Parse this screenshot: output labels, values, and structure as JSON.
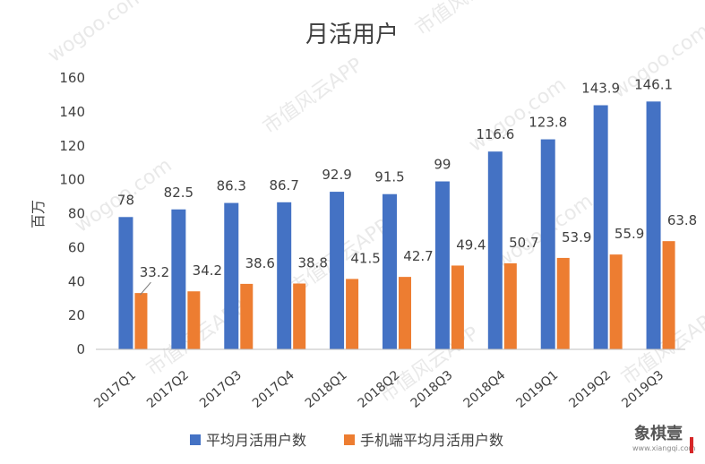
{
  "chart_data": {
    "type": "bar",
    "title": "月活用户",
    "ylabel": "百万",
    "xlabel": "",
    "ylim": [
      0,
      160
    ],
    "yticks": [
      0,
      20,
      40,
      60,
      80,
      100,
      120,
      140,
      160
    ],
    "categories": [
      "2017Q1",
      "2017Q2",
      "2017Q3",
      "2017Q4",
      "2018Q1",
      "2018Q2",
      "2018Q3",
      "2018Q4",
      "2019Q1",
      "2019Q2",
      "2019Q3"
    ],
    "series": [
      {
        "name": "平均月活用户数",
        "color": "#4472c4",
        "values": [
          78,
          82.5,
          86.3,
          86.7,
          92.9,
          91.5,
          99,
          116.6,
          123.8,
          143.9,
          146.1
        ]
      },
      {
        "name": "手机端平均月活用户数",
        "color": "#ed7d31",
        "values": [
          33.2,
          34.2,
          38.6,
          38.8,
          41.5,
          42.7,
          49.4,
          50.7,
          53.9,
          55.9,
          63.8
        ]
      }
    ],
    "grid": false,
    "legend": "bottom"
  },
  "watermark": {
    "text_a": "wogoo.com",
    "text_b": "市值风云APP"
  },
  "logo": {
    "text": "象棋壹",
    "url": "www.xiangqi.com"
  }
}
